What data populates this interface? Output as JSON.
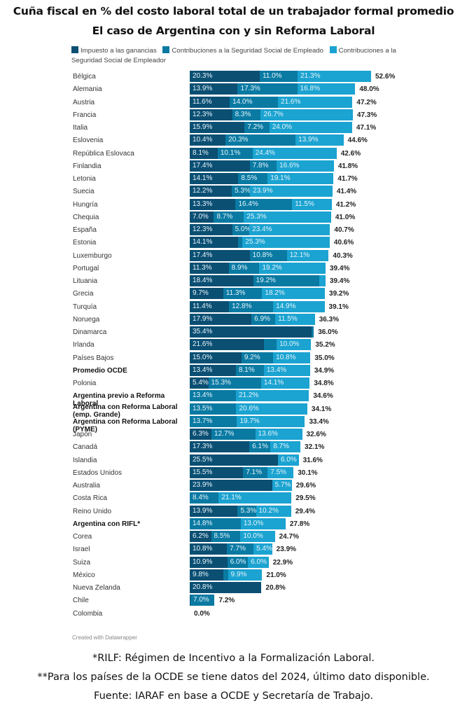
{
  "chart_data": {
    "type": "bar",
    "orientation": "horizontal",
    "stacked": true,
    "title": "Cuña fiscal en % del costo laboral total de un trabajador formal promedio",
    "subtitle": "El caso de Argentina con y sin Reforma Laboral",
    "xlabel": "",
    "ylabel": "",
    "xlim": [
      0,
      52.6
    ],
    "grid": false,
    "legend_position": "top",
    "series": [
      {
        "name": "Impuesto a las ganancias",
        "color": "#0b4f73"
      },
      {
        "name": "Contribuciones a la Seguridad Social de Empleado",
        "color": "#0a7aa3"
      },
      {
        "name": "Contribuciones a la Seguridad Social de Empleador",
        "color": "#1ba3d1"
      }
    ],
    "rows": [
      {
        "label": "Bélgica",
        "values": [
          20.3,
          11.0,
          21.3
        ],
        "labels": [
          "20.3%",
          "11.0%",
          "21.3%"
        ],
        "total": "52.6%"
      },
      {
        "label": "Alemania",
        "values": [
          13.9,
          17.3,
          16.8
        ],
        "labels": [
          "13.9%",
          "17.3%",
          "16.8%"
        ],
        "total": "48.0%"
      },
      {
        "label": "Austria",
        "values": [
          11.6,
          14.0,
          21.6
        ],
        "labels": [
          "11.6%",
          "14.0%",
          "21.6%"
        ],
        "total": "47.2%"
      },
      {
        "label": "Francia",
        "values": [
          12.3,
          8.3,
          26.7
        ],
        "labels": [
          "12.3%",
          "8.3%",
          "26.7%"
        ],
        "total": "47.3%"
      },
      {
        "label": "Italia",
        "values": [
          15.9,
          7.2,
          24.0
        ],
        "labels": [
          "15.9%",
          "7.2%",
          "24.0%"
        ],
        "total": "47.1%"
      },
      {
        "label": "Eslovenia",
        "values": [
          10.4,
          20.3,
          13.9
        ],
        "labels": [
          "10.4%",
          "20.3%",
          "13.9%"
        ],
        "total": "44.6%"
      },
      {
        "label": "República Eslovaca",
        "values": [
          8.1,
          10.1,
          24.4
        ],
        "labels": [
          "8.1%",
          "10.1%",
          "24.4%"
        ],
        "total": "42.6%"
      },
      {
        "label": "Finlandia",
        "values": [
          17.4,
          7.8,
          16.6
        ],
        "labels": [
          "17.4%",
          "7.8%",
          "16.6%"
        ],
        "total": "41.8%"
      },
      {
        "label": "Letonia",
        "values": [
          14.1,
          8.5,
          19.1
        ],
        "labels": [
          "14.1%",
          "8.5%",
          "19.1%"
        ],
        "total": "41.7%"
      },
      {
        "label": "Suecia",
        "values": [
          12.2,
          5.3,
          23.9
        ],
        "labels": [
          "12.2%",
          "5.3%",
          "23.9%"
        ],
        "total": "41.4%"
      },
      {
        "label": "Hungría",
        "values": [
          13.3,
          16.4,
          11.5
        ],
        "labels": [
          "13.3%",
          "16.4%",
          "11.5%"
        ],
        "total": "41.2%"
      },
      {
        "label": "Chequia",
        "values": [
          7.0,
          8.7,
          25.3
        ],
        "labels": [
          "7.0%",
          "8.7%",
          "25.3%"
        ],
        "total": "41.0%"
      },
      {
        "label": "España",
        "values": [
          12.3,
          5.0,
          23.4
        ],
        "labels": [
          "12.3%",
          "5.0%",
          "23.4%"
        ],
        "total": "40.7%"
      },
      {
        "label": "Estonia",
        "values": [
          14.1,
          1.2,
          25.3
        ],
        "labels": [
          "14.1%",
          "",
          "25.3%"
        ],
        "total": "40.6%"
      },
      {
        "label": "Luxemburgo",
        "values": [
          17.4,
          10.8,
          12.1
        ],
        "labels": [
          "17.4%",
          "10.8%",
          "12.1%"
        ],
        "total": "40.3%"
      },
      {
        "label": "Portugal",
        "values": [
          11.3,
          8.9,
          19.2
        ],
        "labels": [
          "11.3%",
          "8.9%",
          "19.2%"
        ],
        "total": "39.4%"
      },
      {
        "label": "Lituania",
        "values": [
          18.4,
          19.2,
          1.8
        ],
        "labels": [
          "18.4%",
          "19.2%",
          ""
        ],
        "total": "39.4%"
      },
      {
        "label": "Grecia",
        "values": [
          9.7,
          11.3,
          18.2
        ],
        "labels": [
          "9.7%",
          "11.3%",
          "18.2%"
        ],
        "total": "39.2%"
      },
      {
        "label": "Turquía",
        "values": [
          11.4,
          12.8,
          14.9
        ],
        "labels": [
          "11.4%",
          "12.8%",
          "14.9%"
        ],
        "total": "39.1%"
      },
      {
        "label": "Noruega",
        "values": [
          17.9,
          6.9,
          11.5
        ],
        "labels": [
          "17.9%",
          "6.9%",
          "11.5%"
        ],
        "total": "36.3%"
      },
      {
        "label": "Dinamarca",
        "values": [
          35.4,
          0.6,
          0.0
        ],
        "labels": [
          "35.4%",
          "",
          ""
        ],
        "total": "36.0%"
      },
      {
        "label": "Irlanda",
        "values": [
          21.6,
          3.6,
          10.0
        ],
        "labels": [
          "21.6%",
          "",
          "10.0%"
        ],
        "total": "35.2%"
      },
      {
        "label": "Países Bajos",
        "values": [
          15.0,
          9.2,
          10.8
        ],
        "labels": [
          "15.0%",
          "9.2%",
          "10.8%"
        ],
        "total": "35.0%"
      },
      {
        "label": "Promedio OCDE",
        "bold": true,
        "values": [
          13.4,
          8.1,
          13.4
        ],
        "labels": [
          "13.4%",
          "8.1%",
          "13.4%"
        ],
        "total": "34.9%"
      },
      {
        "label": "Polonia",
        "values": [
          5.4,
          15.3,
          14.1
        ],
        "labels": [
          "5.4%",
          "15.3%",
          "14.1%"
        ],
        "total": "34.8%"
      },
      {
        "label": "Argentina previo a Reforma Laboral",
        "bold": true,
        "values": [
          0.0,
          13.4,
          21.2
        ],
        "labels": [
          "",
          "13.4%",
          "21.2%"
        ],
        "total": "34.6%"
      },
      {
        "label": "Argentina con Reforma Laboral (emp. Grande)",
        "bold": true,
        "two_line": true,
        "values": [
          0.0,
          13.5,
          20.6
        ],
        "labels": [
          "",
          "13.5%",
          "20.6%"
        ],
        "total": "34.1%"
      },
      {
        "label": "Argentina con Reforma Laboral (PYME)",
        "bold": true,
        "values": [
          0.0,
          13.7,
          19.7
        ],
        "labels": [
          "",
          "13.7%",
          "19.7%"
        ],
        "total": "33.4%"
      },
      {
        "label": "Japón",
        "values": [
          6.3,
          12.7,
          13.6
        ],
        "labels": [
          "6.3%",
          "12.7%",
          "13.6%"
        ],
        "total": "32.6%"
      },
      {
        "label": "Canadá",
        "values": [
          17.3,
          6.1,
          8.7
        ],
        "labels": [
          "17.3%",
          "6.1%",
          "8.7%"
        ],
        "total": "32.1%"
      },
      {
        "label": "Islandia",
        "values": [
          25.5,
          0.1,
          6.0
        ],
        "labels": [
          "25.5%",
          "",
          "6.0%"
        ],
        "total": "31.6%"
      },
      {
        "label": "Estados Unidos",
        "values": [
          15.5,
          7.1,
          7.5
        ],
        "labels": [
          "15.5%",
          "7.1%",
          "7.5%"
        ],
        "total": "30.1%"
      },
      {
        "label": "Australia",
        "values": [
          23.9,
          0.0,
          5.7
        ],
        "labels": [
          "23.9%",
          "",
          "5.7%"
        ],
        "total": "29.6%"
      },
      {
        "label": "Costa Rica",
        "values": [
          0.0,
          8.4,
          21.1
        ],
        "labels": [
          "",
          "8.4%",
          "21.1%"
        ],
        "total": "29.5%"
      },
      {
        "label": "Reino Unido",
        "values": [
          13.9,
          5.3,
          10.2
        ],
        "labels": [
          "13.9%",
          "5.3%",
          "10.2%"
        ],
        "total": "29.4%"
      },
      {
        "label": "Argentina con RIFL*",
        "bold": true,
        "values": [
          0.0,
          14.8,
          13.0
        ],
        "labels": [
          "",
          "14.8%",
          "13.0%"
        ],
        "total": "27.8%"
      },
      {
        "label": "Corea",
        "values": [
          6.2,
          8.5,
          10.0
        ],
        "labels": [
          "6.2%",
          "8.5%",
          "10.0%"
        ],
        "total": "24.7%"
      },
      {
        "label": "Israel",
        "values": [
          10.8,
          7.7,
          5.4
        ],
        "labels": [
          "10.8%",
          "7.7%",
          "5.4%"
        ],
        "total": "23.9%"
      },
      {
        "label": "Suiza",
        "values": [
          10.9,
          6.0,
          6.0
        ],
        "labels": [
          "10.9%",
          "6.0%",
          "6.0%"
        ],
        "total": "22.9%"
      },
      {
        "label": "México",
        "values": [
          9.8,
          1.3,
          9.9
        ],
        "labels": [
          "9.8%",
          "",
          "9.9%"
        ],
        "total": "21.0%"
      },
      {
        "label": "Nueva Zelanda",
        "values": [
          20.8,
          0.0,
          0.0
        ],
        "labels": [
          "20.8%",
          "",
          ""
        ],
        "total": "20.8%"
      },
      {
        "label": "Chile",
        "values": [
          0.2,
          7.0,
          0.0
        ],
        "labels": [
          "",
          "7.0%",
          ""
        ],
        "total": "7.2%"
      },
      {
        "label": "Colombia",
        "values": [
          0.0,
          0.0,
          0.0
        ],
        "labels": [
          "",
          "",
          ""
        ],
        "total": "0.0%"
      }
    ]
  },
  "header": {
    "title": "Cuña fiscal en % del costo laboral total de un trabajador formal promedio",
    "subtitle": "El caso de Argentina con y sin Reforma Laboral"
  },
  "legend": {
    "items": [
      {
        "label": "Impuesto a las ganancias",
        "color": "#0b4f73"
      },
      {
        "label": "Contribuciones a la Seguridad Social de Empleado",
        "color": "#0a7aa3"
      },
      {
        "label": "Contribuciones a la Seguridad Social de Empleador",
        "color": "#1ba3d1"
      }
    ]
  },
  "footer": {
    "credit": "Created with Datawrapper",
    "notes": [
      "*RILF: Régimen de Incentivo a la Formalización Laboral.",
      "**Para los países de la OCDE se tiene datos del 2024, último dato disponible.",
      "Fuente: IARAF en base a OCDE y Secretaría de Trabajo."
    ]
  }
}
